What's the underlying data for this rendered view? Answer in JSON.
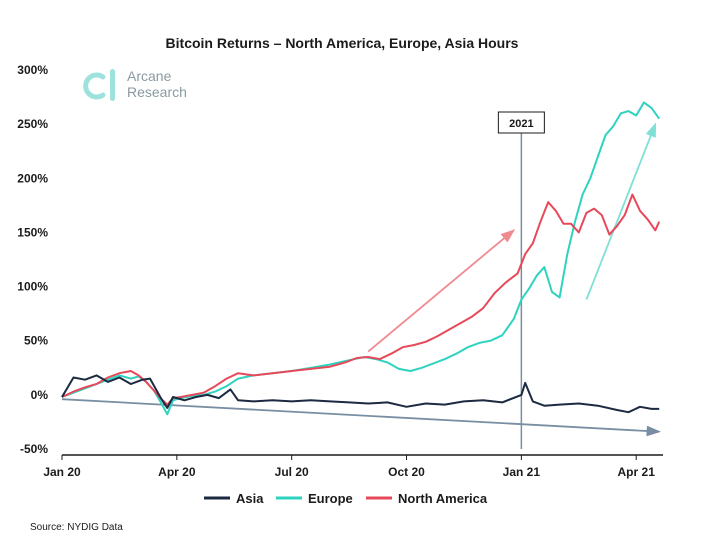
{
  "chart_data": {
    "type": "line",
    "title": "Bitcoin Returns – North America, Europe, Asia Hours",
    "yticks": [
      "300%",
      "250%",
      "200%",
      "150%",
      "100%",
      "50%",
      "0%",
      "-50%"
    ],
    "ytick_values": [
      300,
      250,
      200,
      150,
      100,
      50,
      0,
      -50
    ],
    "ylim": [
      -50,
      300
    ],
    "xlim": [
      0,
      15.7
    ],
    "xticks": [
      {
        "label": "Jan 20",
        "x": 0
      },
      {
        "label": "Apr 20",
        "x": 3
      },
      {
        "label": "Jul 20",
        "x": 6
      },
      {
        "label": "Oct 20",
        "x": 9
      },
      {
        "label": "Jan 21",
        "x": 12
      },
      {
        "label": "Apr 21",
        "x": 15
      }
    ],
    "annotation": {
      "label": "2021",
      "x": 12
    },
    "series": [
      {
        "name": "Asia",
        "color": "#1b2a41",
        "points": [
          [
            0,
            -2
          ],
          [
            0.3,
            16
          ],
          [
            0.6,
            14
          ],
          [
            0.9,
            18
          ],
          [
            1.2,
            12
          ],
          [
            1.5,
            16
          ],
          [
            1.8,
            10
          ],
          [
            2.1,
            14
          ],
          [
            2.3,
            15
          ],
          [
            2.6,
            -4
          ],
          [
            2.75,
            -12
          ],
          [
            2.9,
            -2
          ],
          [
            3.2,
            -5
          ],
          [
            3.5,
            -2
          ],
          [
            3.8,
            0
          ],
          [
            4.1,
            -3
          ],
          [
            4.4,
            5
          ],
          [
            4.6,
            -5
          ],
          [
            5,
            -6
          ],
          [
            5.5,
            -5
          ],
          [
            6,
            -6
          ],
          [
            6.5,
            -5
          ],
          [
            7,
            -6
          ],
          [
            7.5,
            -7
          ],
          [
            8,
            -8
          ],
          [
            8.5,
            -7
          ],
          [
            9,
            -11
          ],
          [
            9.5,
            -8
          ],
          [
            10,
            -9
          ],
          [
            10.5,
            -6
          ],
          [
            11,
            -5
          ],
          [
            11.5,
            -7
          ],
          [
            12,
            0
          ],
          [
            12.1,
            11
          ],
          [
            12.3,
            -6
          ],
          [
            12.6,
            -10
          ],
          [
            13,
            -9
          ],
          [
            13.5,
            -8
          ],
          [
            14,
            -10
          ],
          [
            14.5,
            -14
          ],
          [
            14.8,
            -16
          ],
          [
            15.1,
            -11
          ],
          [
            15.4,
            -13
          ],
          [
            15.6,
            -13
          ]
        ]
      },
      {
        "name": "Europe",
        "color": "#2ed3c0",
        "points": [
          [
            0,
            -2
          ],
          [
            0.3,
            2
          ],
          [
            0.6,
            6
          ],
          [
            0.9,
            10
          ],
          [
            1.2,
            14
          ],
          [
            1.5,
            18
          ],
          [
            1.8,
            15
          ],
          [
            2,
            17
          ],
          [
            2.2,
            12
          ],
          [
            2.4,
            4
          ],
          [
            2.6,
            -8
          ],
          [
            2.75,
            -18
          ],
          [
            2.9,
            -5
          ],
          [
            3.1,
            -3
          ],
          [
            3.4,
            -1
          ],
          [
            3.7,
            0
          ],
          [
            4,
            3
          ],
          [
            4.3,
            8
          ],
          [
            4.6,
            15
          ],
          [
            5,
            18
          ],
          [
            5.5,
            20
          ],
          [
            6,
            22
          ],
          [
            6.5,
            25
          ],
          [
            7,
            28
          ],
          [
            7.5,
            32
          ],
          [
            7.9,
            35
          ],
          [
            8.2,
            33
          ],
          [
            8.5,
            30
          ],
          [
            8.8,
            24
          ],
          [
            9.1,
            22
          ],
          [
            9.4,
            25
          ],
          [
            9.7,
            29
          ],
          [
            10,
            33
          ],
          [
            10.3,
            38
          ],
          [
            10.6,
            44
          ],
          [
            10.9,
            48
          ],
          [
            11.2,
            50
          ],
          [
            11.5,
            55
          ],
          [
            11.8,
            70
          ],
          [
            12,
            88
          ],
          [
            12.2,
            98
          ],
          [
            12.4,
            110
          ],
          [
            12.6,
            118
          ],
          [
            12.8,
            95
          ],
          [
            13,
            90
          ],
          [
            13.2,
            130
          ],
          [
            13.4,
            160
          ],
          [
            13.6,
            185
          ],
          [
            13.8,
            200
          ],
          [
            14,
            220
          ],
          [
            14.2,
            240
          ],
          [
            14.4,
            248
          ],
          [
            14.6,
            260
          ],
          [
            14.8,
            262
          ],
          [
            15,
            258
          ],
          [
            15.2,
            270
          ],
          [
            15.4,
            265
          ],
          [
            15.6,
            255
          ]
        ]
      },
      {
        "name": "North America",
        "color": "#e8495a",
        "points": [
          [
            0,
            -2
          ],
          [
            0.3,
            3
          ],
          [
            0.6,
            7
          ],
          [
            0.9,
            10
          ],
          [
            1.2,
            16
          ],
          [
            1.5,
            20
          ],
          [
            1.8,
            22
          ],
          [
            2,
            18
          ],
          [
            2.2,
            12
          ],
          [
            2.4,
            4
          ],
          [
            2.6,
            -4
          ],
          [
            2.75,
            -9
          ],
          [
            2.9,
            -3
          ],
          [
            3.1,
            -2
          ],
          [
            3.4,
            0
          ],
          [
            3.7,
            2
          ],
          [
            4,
            8
          ],
          [
            4.3,
            15
          ],
          [
            4.6,
            20
          ],
          [
            5,
            18
          ],
          [
            5.5,
            20
          ],
          [
            6,
            22
          ],
          [
            6.5,
            24
          ],
          [
            7,
            26
          ],
          [
            7.4,
            30
          ],
          [
            7.7,
            34
          ],
          [
            8,
            35
          ],
          [
            8.3,
            33
          ],
          [
            8.6,
            38
          ],
          [
            8.9,
            44
          ],
          [
            9.2,
            46
          ],
          [
            9.5,
            49
          ],
          [
            9.8,
            54
          ],
          [
            10.1,
            60
          ],
          [
            10.4,
            66
          ],
          [
            10.7,
            72
          ],
          [
            11,
            80
          ],
          [
            11.3,
            94
          ],
          [
            11.6,
            104
          ],
          [
            11.9,
            112
          ],
          [
            12.1,
            130
          ],
          [
            12.3,
            140
          ],
          [
            12.5,
            160
          ],
          [
            12.7,
            178
          ],
          [
            12.9,
            170
          ],
          [
            13.1,
            158
          ],
          [
            13.3,
            158
          ],
          [
            13.5,
            150
          ],
          [
            13.7,
            168
          ],
          [
            13.9,
            172
          ],
          [
            14.1,
            166
          ],
          [
            14.3,
            148
          ],
          [
            14.5,
            156
          ],
          [
            14.7,
            166
          ],
          [
            14.9,
            185
          ],
          [
            15.1,
            170
          ],
          [
            15.3,
            162
          ],
          [
            15.5,
            152
          ],
          [
            15.6,
            160
          ]
        ]
      }
    ],
    "trend_arrows": [
      {
        "color": "#f08a91",
        "from": [
          8.0,
          40
        ],
        "to": [
          11.8,
          152
        ]
      },
      {
        "color": "#7fe0d6",
        "from": [
          13.7,
          88
        ],
        "to": [
          15.5,
          250
        ]
      },
      {
        "color": "#7a8ea3",
        "from": [
          0,
          -4
        ],
        "to": [
          15.6,
          -34
        ]
      }
    ],
    "legend": {
      "placement": "bottom",
      "items": [
        "Asia",
        "Europe",
        "North America"
      ]
    },
    "grid": false
  },
  "logo": {
    "line1": "Arcane",
    "line2": "Research"
  },
  "source": "Source: NYDIG Data"
}
